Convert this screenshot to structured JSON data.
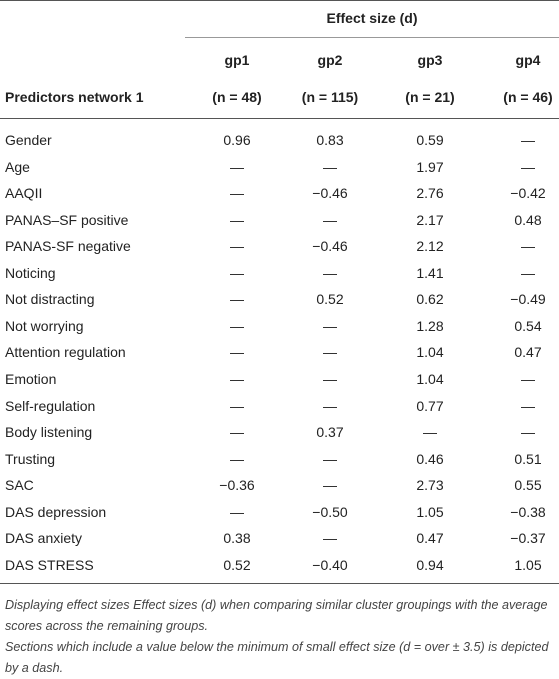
{
  "table": {
    "group_header": "Effect size (d)",
    "row_header": "Predictors network 1",
    "columns": [
      "gp1",
      "gp2",
      "gp3",
      "gp4"
    ],
    "sizes": [
      "(n = 48)",
      "(n = 115)",
      "(n = 21)",
      "(n = 46)"
    ],
    "rows": [
      [
        "Gender",
        "0.96",
        "0.83",
        "0.59",
        "—"
      ],
      [
        "Age",
        "—",
        "—",
        "1.97",
        "—"
      ],
      [
        "AAQII",
        "—",
        "−0.46",
        "2.76",
        "−0.42"
      ],
      [
        "PANAS–SF positive",
        "—",
        "—",
        "2.17",
        "0.48"
      ],
      [
        "PANAS-SF negative",
        "—",
        "−0.46",
        "2.12",
        "—"
      ],
      [
        "Noticing",
        "—",
        "—",
        "1.41",
        "—"
      ],
      [
        "Not distracting",
        "—",
        "0.52",
        "0.62",
        "−0.49"
      ],
      [
        "Not worrying",
        "—",
        "—",
        "1.28",
        "0.54"
      ],
      [
        "Attention regulation",
        "—",
        "—",
        "1.04",
        "0.47"
      ],
      [
        "Emotion",
        "—",
        "—",
        "1.04",
        "—"
      ],
      [
        "Self-regulation",
        "—",
        "—",
        "0.77",
        "—"
      ],
      [
        "Body listening",
        "—",
        "0.37",
        "—",
        "—"
      ],
      [
        "Trusting",
        "—",
        "—",
        "0.46",
        "0.51"
      ],
      [
        "SAC",
        "−0.36",
        "—",
        "2.73",
        "0.55"
      ],
      [
        "DAS depression",
        "—",
        "−0.50",
        "1.05",
        "−0.38"
      ],
      [
        "DAS anxiety",
        "0.38",
        "—",
        "0.47",
        "−0.37"
      ],
      [
        "DAS STRESS",
        "0.52",
        "−0.40",
        "0.94",
        "1.05"
      ]
    ],
    "footnotes": [
      "Displaying effect sizes Effect sizes (d) when comparing similar cluster groupings with the average scores across the remaining groups.",
      "Sections which include a value below the minimum of small effect size (d = over ± 3.5) is depicted by a dash."
    ]
  }
}
